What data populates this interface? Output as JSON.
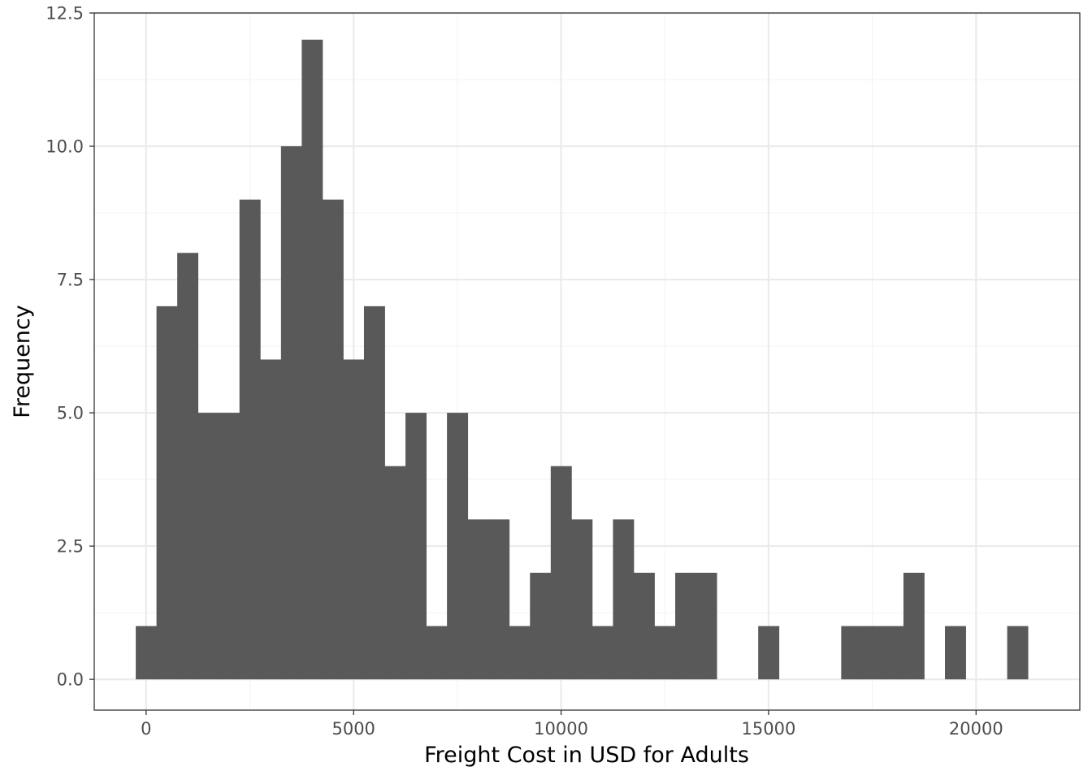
{
  "chart_data": {
    "type": "bar",
    "title": "",
    "xlabel": "Freight Cost in USD for Adults",
    "ylabel": "Frequency",
    "bin_width": 500,
    "xlim": [
      -1250,
      22500
    ],
    "ylim": [
      -0.577,
      12.5
    ],
    "x_ticks": [
      0,
      5000,
      10000,
      15000,
      20000
    ],
    "x_tick_labels": [
      "0",
      "5000",
      "10000",
      "15000",
      "20000"
    ],
    "y_ticks": [
      0,
      2.5,
      5,
      7.5,
      10,
      12.5
    ],
    "y_tick_labels": [
      "0.0",
      "2.5",
      "5.0",
      "7.5",
      "10.0",
      "12.5"
    ],
    "grid": true,
    "theme": "bw",
    "colors": {
      "bar_fill": "#595959",
      "grid_major": "#ebebeb",
      "grid_minor": "#f3f3f3",
      "panel_border": "#333333",
      "tick_text": "#4d4d4d",
      "title_text": "#000000"
    },
    "bins": [
      {
        "x": 0,
        "count": 1
      },
      {
        "x": 500,
        "count": 7
      },
      {
        "x": 1000,
        "count": 8
      },
      {
        "x": 1500,
        "count": 5
      },
      {
        "x": 2000,
        "count": 5
      },
      {
        "x": 2500,
        "count": 9
      },
      {
        "x": 3000,
        "count": 6
      },
      {
        "x": 3500,
        "count": 10
      },
      {
        "x": 4000,
        "count": 12
      },
      {
        "x": 4500,
        "count": 9
      },
      {
        "x": 5000,
        "count": 6
      },
      {
        "x": 5500,
        "count": 7
      },
      {
        "x": 6000,
        "count": 4
      },
      {
        "x": 6500,
        "count": 5
      },
      {
        "x": 7000,
        "count": 1
      },
      {
        "x": 7500,
        "count": 5
      },
      {
        "x": 8000,
        "count": 3
      },
      {
        "x": 8500,
        "count": 3
      },
      {
        "x": 9000,
        "count": 1
      },
      {
        "x": 9500,
        "count": 2
      },
      {
        "x": 10000,
        "count": 4
      },
      {
        "x": 10500,
        "count": 3
      },
      {
        "x": 11000,
        "count": 1
      },
      {
        "x": 11500,
        "count": 3
      },
      {
        "x": 12000,
        "count": 2
      },
      {
        "x": 12500,
        "count": 1
      },
      {
        "x": 13000,
        "count": 2
      },
      {
        "x": 13500,
        "count": 2
      },
      {
        "x": 15000,
        "count": 1
      },
      {
        "x": 17000,
        "count": 1
      },
      {
        "x": 17500,
        "count": 1
      },
      {
        "x": 18000,
        "count": 1
      },
      {
        "x": 18500,
        "count": 2
      },
      {
        "x": 19500,
        "count": 1
      },
      {
        "x": 21000,
        "count": 1
      }
    ]
  }
}
